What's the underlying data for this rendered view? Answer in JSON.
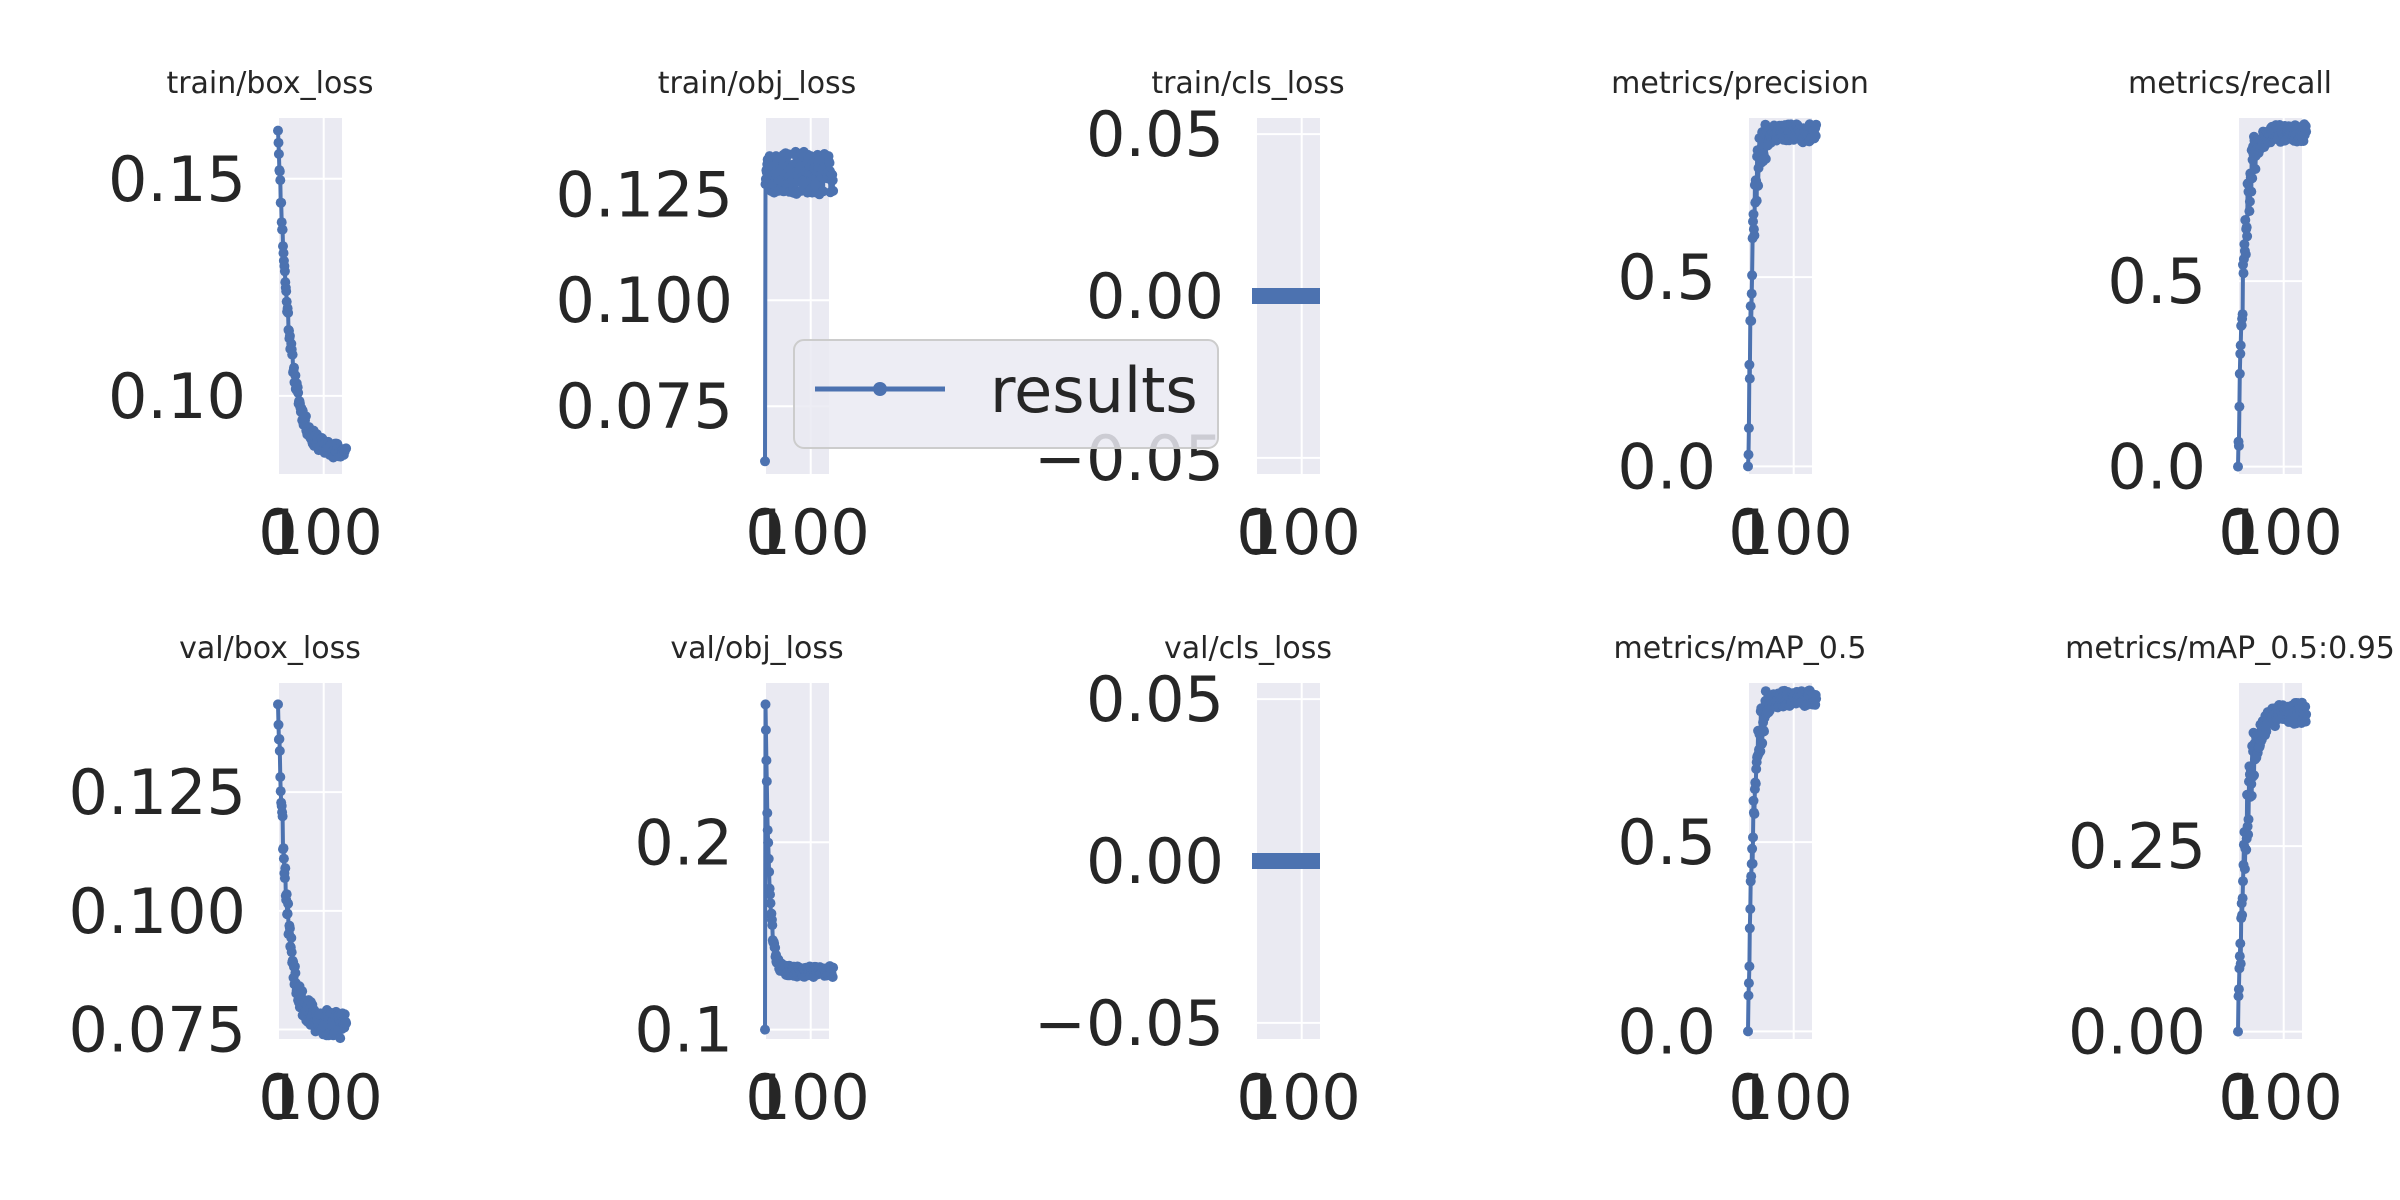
{
  "figure": {
    "line_color": "#4c72b0",
    "panel_bg": "#eaeaf2",
    "grid_color": "#ffffff",
    "legend": {
      "label": "results",
      "position": "center"
    }
  },
  "chart_data": [
    {
      "type": "line",
      "title": "train/box_loss",
      "xlim": [
        0,
        140
      ],
      "ylim": [
        0.082,
        0.164
      ],
      "yticks": [
        "0.15",
        "0.10"
      ],
      "ytick_values": [
        0.15,
        0.1
      ],
      "xticks": [
        "0",
        "100"
      ],
      "xtick_values": [
        0,
        100
      ],
      "pattern": "decay",
      "x": [],
      "y": [],
      "params": {
        "start": 0.162,
        "end": 0.087,
        "rate": 25,
        "noise": 0.0018,
        "seed": 11
      }
    },
    {
      "type": "line",
      "title": "train/obj_loss",
      "xlim": [
        0,
        140
      ],
      "ylim": [
        0.059,
        0.143
      ],
      "yticks": [
        "0.125",
        "0.100",
        "0.075"
      ],
      "ytick_values": [
        0.125,
        0.1,
        0.075
      ],
      "xticks": [
        "0",
        "100"
      ],
      "xtick_values": [
        0,
        100
      ],
      "pattern": "jump",
      "x": [],
      "y": [],
      "params": {
        "start": 0.062,
        "end": 0.13,
        "rate": 1,
        "noise": 0.005,
        "seed": 23
      }
    },
    {
      "type": "line",
      "title": "train/cls_loss",
      "xlim": [
        0,
        140
      ],
      "ylim": [
        -0.055,
        0.055
      ],
      "yticks": [
        "0.05",
        "0.00",
        "−0.05"
      ],
      "ytick_values": [
        0.05,
        0.0,
        -0.05
      ],
      "xticks": [
        "0",
        "100"
      ],
      "xtick_values": [
        0,
        100
      ],
      "pattern": "flat",
      "x": [],
      "y": [],
      "params": {
        "value": 0.0,
        "seed": 1
      }
    },
    {
      "type": "line",
      "title": "metrics/precision",
      "xlim": [
        0,
        140
      ],
      "ylim": [
        -0.02,
        0.92
      ],
      "yticks": [
        "0.5",
        "0.0"
      ],
      "ytick_values": [
        0.5,
        0.0
      ],
      "xticks": [
        "0",
        "100"
      ],
      "xtick_values": [
        0,
        100
      ],
      "pattern": "rise",
      "x": [],
      "y": [],
      "params": {
        "start": 0.0,
        "end": 0.88,
        "rate": 10,
        "noise": 0.04,
        "seed": 31
      }
    },
    {
      "type": "line",
      "title": "metrics/recall",
      "xlim": [
        0,
        140
      ],
      "ylim": [
        -0.02,
        0.94
      ],
      "yticks": [
        "0.5",
        "0.0"
      ],
      "ytick_values": [
        0.5,
        0.0
      ],
      "xticks": [
        "0",
        "100"
      ],
      "xtick_values": [
        0,
        100
      ],
      "pattern": "rise",
      "x": [],
      "y": [],
      "params": {
        "start": 0.0,
        "end": 0.9,
        "rate": 14,
        "noise": 0.04,
        "seed": 47
      }
    },
    {
      "type": "line",
      "title": "val/box_loss",
      "xlim": [
        0,
        140
      ],
      "ylim": [
        0.073,
        0.148
      ],
      "yticks": [
        "0.125",
        "0.100",
        "0.075"
      ],
      "ytick_values": [
        0.125,
        0.1,
        0.075
      ],
      "xticks": [
        "0",
        "100"
      ],
      "xtick_values": [
        0,
        100
      ],
      "pattern": "decay",
      "x": [],
      "y": [],
      "params": {
        "start": 0.145,
        "end": 0.076,
        "rate": 20,
        "noise": 0.003,
        "seed": 53
      }
    },
    {
      "type": "line",
      "title": "val/obj_loss",
      "xlim": [
        0,
        140
      ],
      "ylim": [
        0.095,
        0.285
      ],
      "yticks": [
        "0.2",
        "0.1"
      ],
      "ytick_values": [
        0.2,
        0.1
      ],
      "xticks": [
        "0",
        "100"
      ],
      "xtick_values": [
        0,
        100
      ],
      "pattern": "spike",
      "x": [],
      "y": [],
      "params": {
        "start": 0.1,
        "peak": 0.275,
        "end": 0.131,
        "rate": 8,
        "noise": 0.003,
        "seed": 61
      }
    },
    {
      "type": "line",
      "title": "val/cls_loss",
      "xlim": [
        0,
        140
      ],
      "ylim": [
        -0.055,
        0.055
      ],
      "yticks": [
        "0.05",
        "0.00",
        "−0.05"
      ],
      "ytick_values": [
        0.05,
        0.0,
        -0.05
      ],
      "xticks": [
        "0",
        "100"
      ],
      "xtick_values": [
        0,
        100
      ],
      "pattern": "flat",
      "x": [],
      "y": [],
      "params": {
        "value": 0.0,
        "seed": 2
      }
    },
    {
      "type": "line",
      "title": "metrics/mAP_0.5",
      "xlim": [
        0,
        140
      ],
      "ylim": [
        -0.02,
        0.92
      ],
      "yticks": [
        "0.5",
        "0.0"
      ],
      "ytick_values": [
        0.5,
        0.0
      ],
      "xticks": [
        "0",
        "100"
      ],
      "xtick_values": [
        0,
        100
      ],
      "pattern": "rise",
      "x": [],
      "y": [],
      "params": {
        "start": 0.0,
        "end": 0.88,
        "rate": 12,
        "noise": 0.035,
        "seed": 71
      }
    },
    {
      "type": "line",
      "title": "metrics/mAP_0.5:0.95",
      "xlim": [
        0,
        140
      ],
      "ylim": [
        -0.01,
        0.47
      ],
      "yticks": [
        "0.25",
        "0.00"
      ],
      "ytick_values": [
        0.25,
        0.0
      ],
      "xticks": [
        "0",
        "100"
      ],
      "xtick_values": [
        0,
        100
      ],
      "pattern": "rise",
      "x": [],
      "y": [],
      "params": {
        "start": 0.0,
        "end": 0.43,
        "rate": 18,
        "noise": 0.025,
        "seed": 83
      }
    }
  ]
}
